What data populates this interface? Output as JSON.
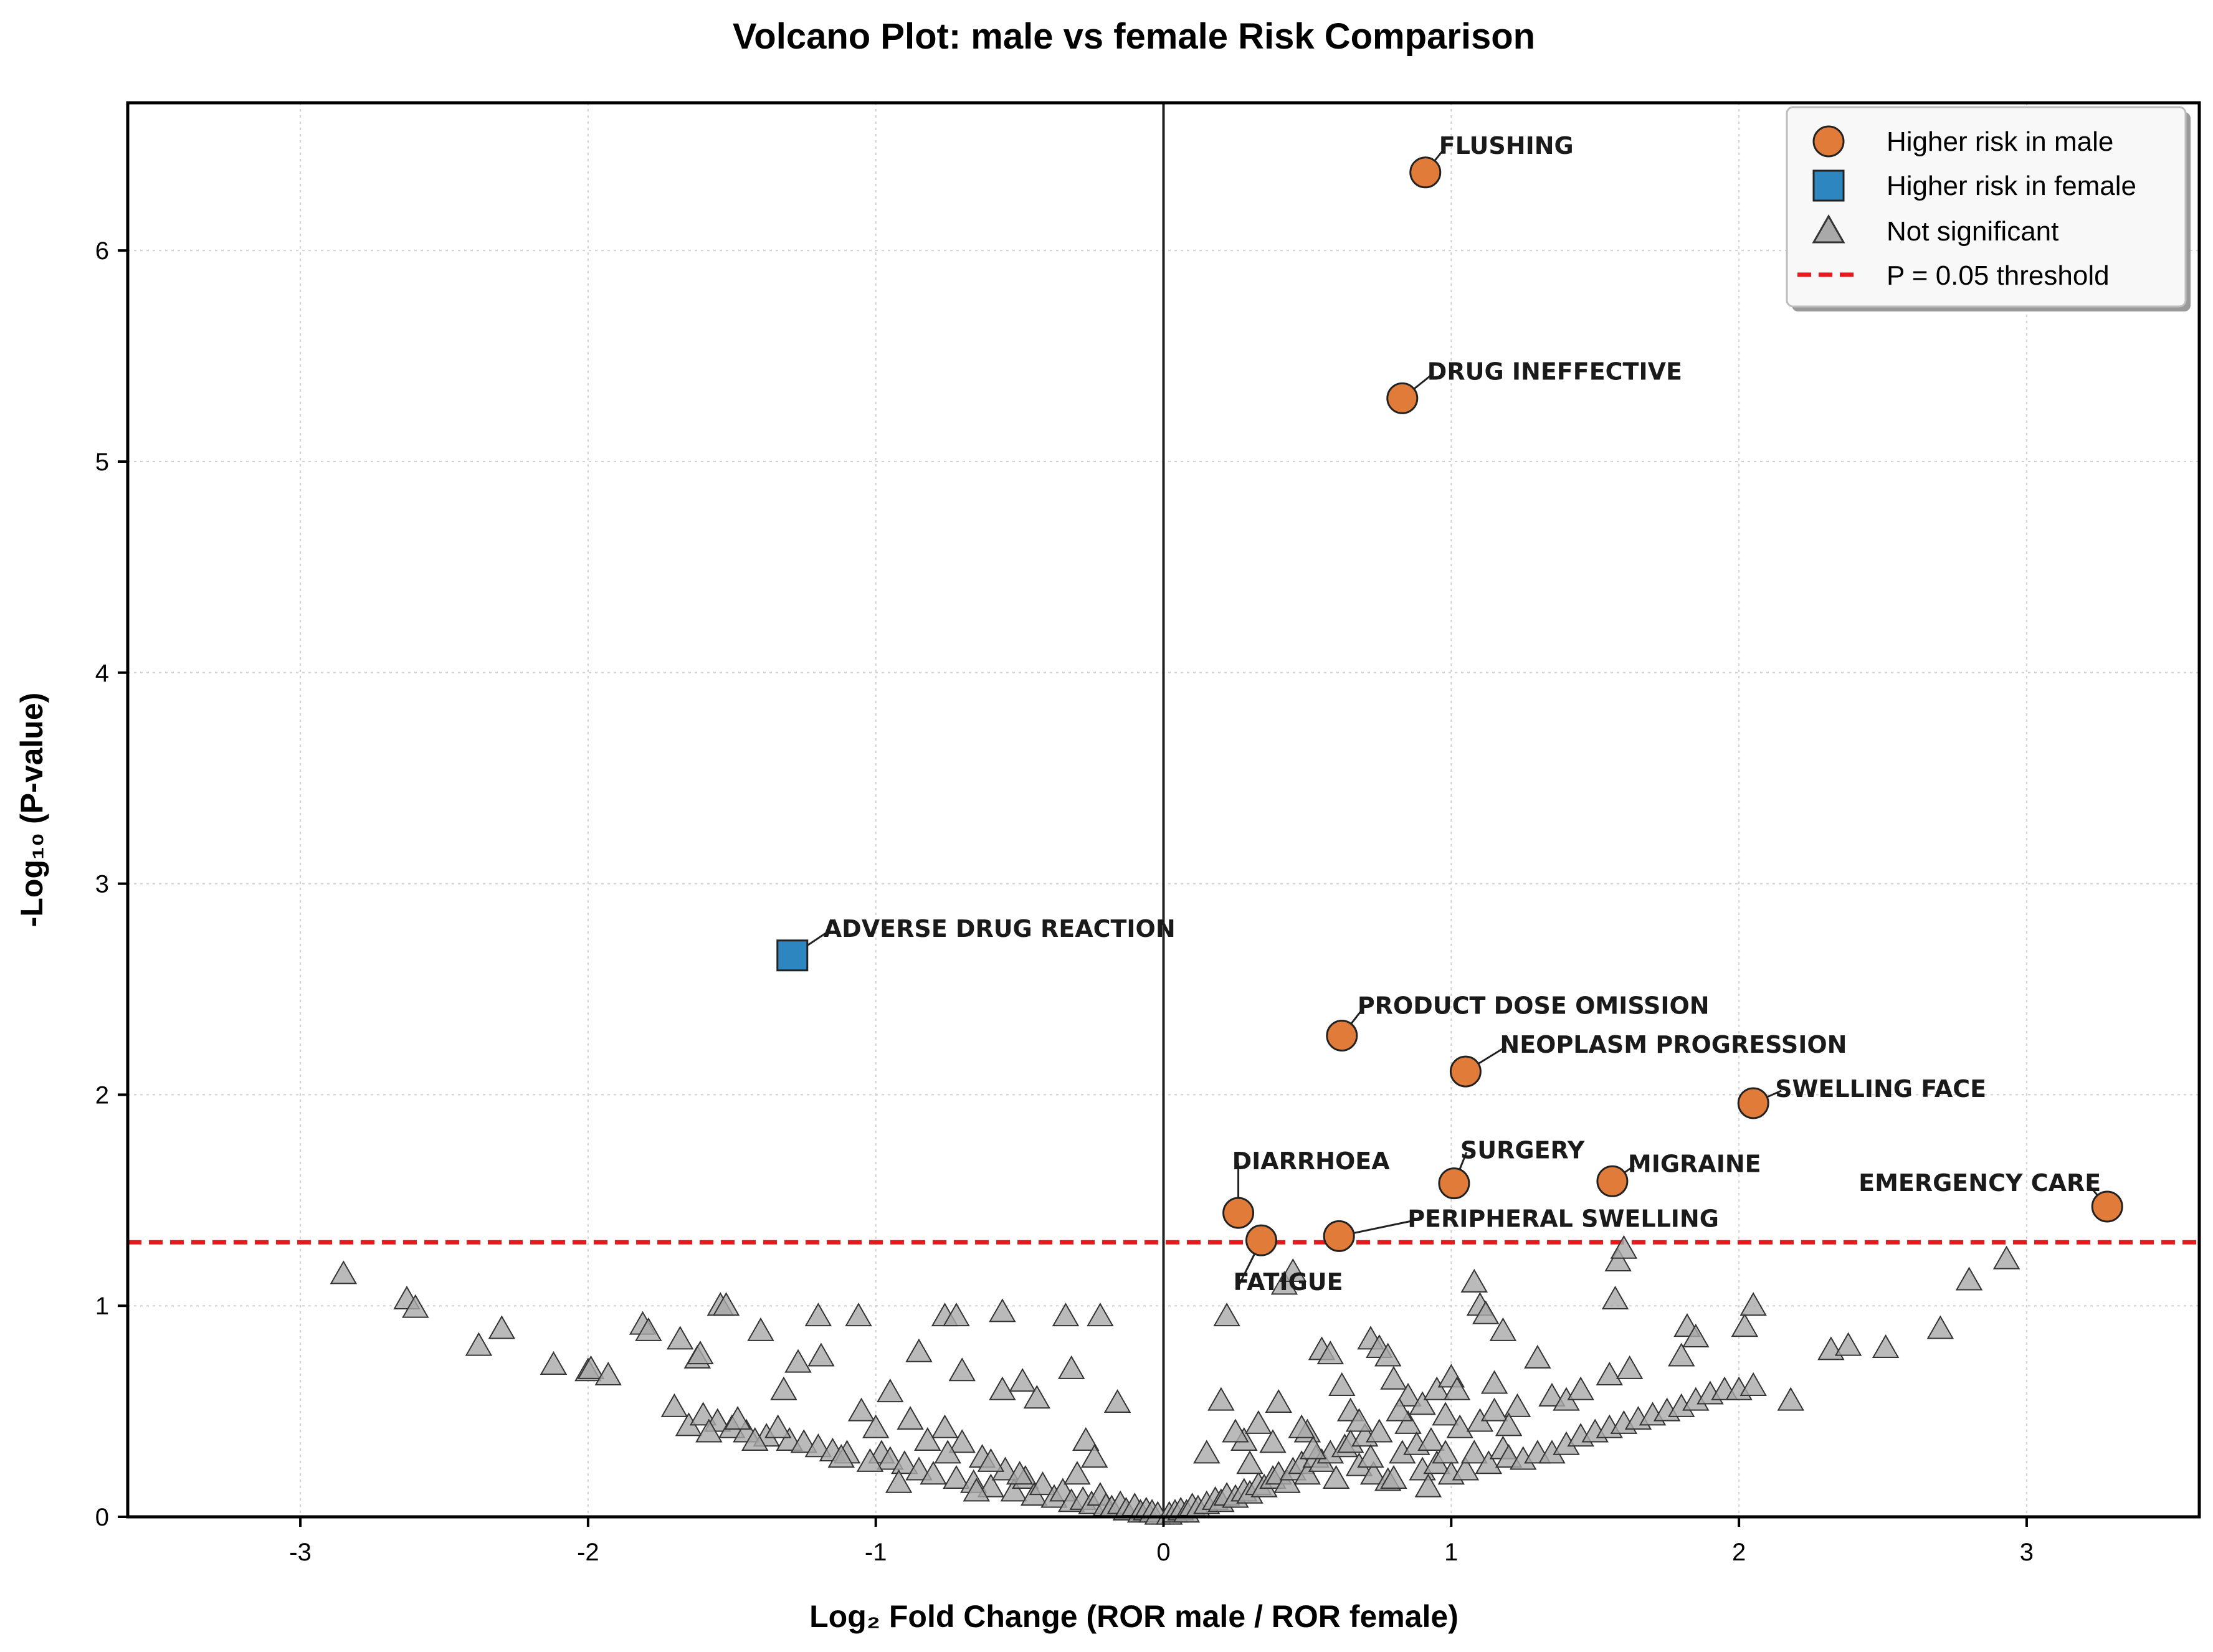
{
  "chart_data": {
    "type": "scatter",
    "title": "Volcano Plot: male vs female Risk Comparison",
    "xlabel": "Log₂ Fold Change (ROR male / ROR female)",
    "ylabel": "-Log₁₀ (P-value)",
    "xlim": [
      -3.6,
      3.6
    ],
    "ylim": [
      0,
      6.7
    ],
    "xticks": [
      -3,
      -2,
      -1,
      0,
      1,
      2,
      3
    ],
    "yticks": [
      0,
      1,
      2,
      3,
      4,
      5,
      6
    ],
    "threshold_y": 1.301,
    "grid": true,
    "legend_position": "top-right",
    "legend": [
      {
        "label": "Higher risk in male",
        "marker": "circle"
      },
      {
        "label": "Higher risk in female",
        "marker": "square"
      },
      {
        "label": "Not significant",
        "marker": "triangle"
      },
      {
        "label": "P = 0.05 threshold",
        "marker": "dashed-line"
      }
    ],
    "colors": {
      "male": "#E07B39",
      "female": "#2E86C1",
      "ns": "#A9A9A9",
      "threshold": "#E8191C"
    },
    "significant": [
      {
        "label": "FLUSHING",
        "x": 0.91,
        "y": 6.37,
        "group": "male"
      },
      {
        "label": "DRUG INEFFECTIVE",
        "x": 0.83,
        "y": 5.3,
        "group": "male"
      },
      {
        "label": "ADVERSE DRUG REACTION",
        "x": -1.29,
        "y": 2.66,
        "group": "female"
      },
      {
        "label": "PRODUCT DOSE OMISSION",
        "x": 0.62,
        "y": 2.28,
        "group": "male"
      },
      {
        "label": "NEOPLASM PROGRESSION",
        "x": 1.05,
        "y": 2.11,
        "group": "male"
      },
      {
        "label": "SWELLING FACE",
        "x": 2.05,
        "y": 1.96,
        "group": "male"
      },
      {
        "label": "SURGERY",
        "x": 1.01,
        "y": 1.58,
        "group": "male"
      },
      {
        "label": "MIGRAINE",
        "x": 1.56,
        "y": 1.59,
        "group": "male"
      },
      {
        "label": "EMERGENCY CARE",
        "x": 3.28,
        "y": 1.47,
        "group": "male"
      },
      {
        "label": "DIARRHOEA",
        "x": 0.26,
        "y": 1.44,
        "group": "male"
      },
      {
        "label": "PERIPHERAL SWELLING",
        "x": 0.61,
        "y": 1.33,
        "group": "male"
      },
      {
        "label": "FATIGUE",
        "x": 0.34,
        "y": 1.31,
        "group": "male"
      }
    ],
    "nonsignificant": [
      [
        -2.85,
        1.15
      ],
      [
        -2.63,
        1.03
      ],
      [
        -2.6,
        0.99
      ],
      [
        -2.38,
        0.81
      ],
      [
        -2.3,
        0.89
      ],
      [
        -2.12,
        0.72
      ],
      [
        -2.0,
        0.69
      ],
      [
        -1.99,
        0.7
      ],
      [
        -1.93,
        0.67
      ],
      [
        -1.81,
        0.91
      ],
      [
        -1.79,
        0.88
      ],
      [
        -1.68,
        0.84
      ],
      [
        -1.62,
        0.75
      ],
      [
        -1.61,
        0.77
      ],
      [
        -1.54,
        1.0
      ],
      [
        -1.52,
        1.0
      ],
      [
        -1.4,
        0.88
      ],
      [
        -1.32,
        0.6
      ],
      [
        -1.27,
        0.73
      ],
      [
        -1.2,
        0.95
      ],
      [
        -1.19,
        0.76
      ],
      [
        -1.06,
        0.95
      ],
      [
        -0.95,
        0.59
      ],
      [
        -0.85,
        0.78
      ],
      [
        -0.76,
        0.95
      ],
      [
        -0.72,
        0.95
      ],
      [
        -0.7,
        0.69
      ],
      [
        -0.56,
        0.97
      ],
      [
        -0.56,
        0.6
      ],
      [
        -0.49,
        0.64
      ],
      [
        -0.44,
        0.56
      ],
      [
        -0.34,
        0.95
      ],
      [
        -0.32,
        0.7
      ],
      [
        -0.22,
        0.95
      ],
      [
        -0.16,
        0.54
      ],
      [
        -1.7,
        0.52
      ],
      [
        -1.65,
        0.43
      ],
      [
        -1.6,
        0.48
      ],
      [
        -1.55,
        0.45
      ],
      [
        -1.5,
        0.42
      ],
      [
        -1.45,
        0.4
      ],
      [
        -1.38,
        0.38
      ],
      [
        -1.3,
        0.36
      ],
      [
        -1.25,
        0.35
      ],
      [
        -1.2,
        0.33
      ],
      [
        -1.15,
        0.31
      ],
      [
        -1.1,
        0.3
      ],
      [
        -1.05,
        0.5
      ],
      [
        -1.0,
        0.42
      ],
      [
        -0.98,
        0.3
      ],
      [
        -0.95,
        0.27
      ],
      [
        -0.9,
        0.25
      ],
      [
        -0.88,
        0.46
      ],
      [
        -0.85,
        0.22
      ],
      [
        -0.8,
        0.2
      ],
      [
        -0.76,
        0.42
      ],
      [
        -0.72,
        0.18
      ],
      [
        -0.7,
        0.35
      ],
      [
        -0.66,
        0.16
      ],
      [
        -0.63,
        0.28
      ],
      [
        -0.6,
        0.14
      ],
      [
        -0.55,
        0.22
      ],
      [
        -0.52,
        0.12
      ],
      [
        -0.48,
        0.18
      ],
      [
        -0.45,
        0.1
      ],
      [
        -0.42,
        0.15
      ],
      [
        -0.38,
        0.09
      ],
      [
        -0.35,
        0.12
      ],
      [
        -0.32,
        0.07
      ],
      [
        -0.3,
        0.2
      ],
      [
        -0.28,
        0.08
      ],
      [
        -0.25,
        0.06
      ],
      [
        -0.22,
        0.1
      ],
      [
        -0.2,
        0.05
      ],
      [
        -0.18,
        0.04
      ],
      [
        -0.15,
        0.06
      ],
      [
        -0.13,
        0.03
      ],
      [
        -0.1,
        0.05
      ],
      [
        -0.08,
        0.02
      ],
      [
        -0.06,
        0.03
      ],
      [
        -0.04,
        0.02
      ],
      [
        -0.02,
        0.01
      ],
      [
        -0.27,
        0.36
      ],
      [
        -0.24,
        0.28
      ],
      [
        -0.5,
        0.2
      ],
      [
        -0.6,
        0.26
      ],
      [
        -0.65,
        0.12
      ],
      [
        -0.75,
        0.3
      ],
      [
        -0.82,
        0.36
      ],
      [
        -0.92,
        0.16
      ],
      [
        -1.02,
        0.26
      ],
      [
        -1.12,
        0.28
      ],
      [
        -1.34,
        0.42
      ],
      [
        -1.42,
        0.36
      ],
      [
        -1.48,
        0.46
      ],
      [
        -1.58,
        0.4
      ],
      [
        0.02,
        0.01
      ],
      [
        0.04,
        0.02
      ],
      [
        0.06,
        0.03
      ],
      [
        0.08,
        0.02
      ],
      [
        0.1,
        0.05
      ],
      [
        0.12,
        0.04
      ],
      [
        0.15,
        0.06
      ],
      [
        0.18,
        0.08
      ],
      [
        0.2,
        0.07
      ],
      [
        0.22,
        0.1
      ],
      [
        0.25,
        0.09
      ],
      [
        0.28,
        0.12
      ],
      [
        0.3,
        0.11
      ],
      [
        0.33,
        0.15
      ],
      [
        0.35,
        0.14
      ],
      [
        0.38,
        0.18
      ],
      [
        0.4,
        0.2
      ],
      [
        0.43,
        0.16
      ],
      [
        0.45,
        0.22
      ],
      [
        0.48,
        0.25
      ],
      [
        0.5,
        0.2
      ],
      [
        0.53,
        0.28
      ],
      [
        0.55,
        0.26
      ],
      [
        0.58,
        0.3
      ],
      [
        0.6,
        0.18
      ],
      [
        0.63,
        0.33
      ],
      [
        0.65,
        0.35
      ],
      [
        0.68,
        0.24
      ],
      [
        0.7,
        0.38
      ],
      [
        0.73,
        0.2
      ],
      [
        0.75,
        0.4
      ],
      [
        0.78,
        0.17
      ],
      [
        0.8,
        0.18
      ],
      [
        0.83,
        0.3
      ],
      [
        0.85,
        0.44
      ],
      [
        0.88,
        0.34
      ],
      [
        0.9,
        0.22
      ],
      [
        0.93,
        0.36
      ],
      [
        0.95,
        0.25
      ],
      [
        0.98,
        0.48
      ],
      [
        1.0,
        0.2
      ],
      [
        1.03,
        0.42
      ],
      [
        1.05,
        0.22
      ],
      [
        1.08,
        0.3
      ],
      [
        1.1,
        0.45
      ],
      [
        1.13,
        0.25
      ],
      [
        1.15,
        0.5
      ],
      [
        1.18,
        0.32
      ],
      [
        1.2,
        0.28
      ],
      [
        1.23,
        0.52
      ],
      [
        1.25,
        0.27
      ],
      [
        1.3,
        0.3
      ],
      [
        1.35,
        0.3
      ],
      [
        1.4,
        0.34
      ],
      [
        1.45,
        0.38
      ],
      [
        1.5,
        0.4
      ],
      [
        1.55,
        0.42
      ],
      [
        1.6,
        0.44
      ],
      [
        1.65,
        0.46
      ],
      [
        1.7,
        0.48
      ],
      [
        1.75,
        0.5
      ],
      [
        1.8,
        0.52
      ],
      [
        1.85,
        0.55
      ],
      [
        1.9,
        0.58
      ],
      [
        1.95,
        0.6
      ],
      [
        2.0,
        0.6
      ],
      [
        2.05,
        0.62
      ],
      [
        2.18,
        0.55
      ],
      [
        0.22,
        0.95
      ],
      [
        0.2,
        0.55
      ],
      [
        0.28,
        0.36
      ],
      [
        0.33,
        0.44
      ],
      [
        0.38,
        0.35
      ],
      [
        0.4,
        0.54
      ],
      [
        0.42,
        1.1
      ],
      [
        0.45,
        1.16
      ],
      [
        0.5,
        0.4
      ],
      [
        0.55,
        0.79
      ],
      [
        0.58,
        0.77
      ],
      [
        0.62,
        0.62
      ],
      [
        0.65,
        0.5
      ],
      [
        0.72,
        0.84
      ],
      [
        0.75,
        0.8
      ],
      [
        0.78,
        0.76
      ],
      [
        0.8,
        0.65
      ],
      [
        0.85,
        0.57
      ],
      [
        0.9,
        0.53
      ],
      [
        0.95,
        0.6
      ],
      [
        1.0,
        0.66
      ],
      [
        1.02,
        0.6
      ],
      [
        1.08,
        1.11
      ],
      [
        1.1,
        1.0
      ],
      [
        1.12,
        0.96
      ],
      [
        1.15,
        0.63
      ],
      [
        1.18,
        0.88
      ],
      [
        1.2,
        0.43
      ],
      [
        1.3,
        0.75
      ],
      [
        1.35,
        0.57
      ],
      [
        1.4,
        0.55
      ],
      [
        1.45,
        0.6
      ],
      [
        1.55,
        0.67
      ],
      [
        1.58,
        1.21
      ],
      [
        1.6,
        1.27
      ],
      [
        1.57,
        1.03
      ],
      [
        1.62,
        0.7
      ],
      [
        1.8,
        0.76
      ],
      [
        1.82,
        0.9
      ],
      [
        1.85,
        0.85
      ],
      [
        2.02,
        0.9
      ],
      [
        2.05,
        1.0
      ],
      [
        2.32,
        0.79
      ],
      [
        2.38,
        0.81
      ],
      [
        2.51,
        0.8
      ],
      [
        2.7,
        0.89
      ],
      [
        2.8,
        1.12
      ],
      [
        2.93,
        1.22
      ],
      [
        0.15,
        0.3
      ],
      [
        0.25,
        0.4
      ],
      [
        0.3,
        0.25
      ],
      [
        0.48,
        0.42
      ],
      [
        0.52,
        0.32
      ],
      [
        0.68,
        0.45
      ],
      [
        0.72,
        0.28
      ],
      [
        0.82,
        0.5
      ],
      [
        0.92,
        0.14
      ],
      [
        0.98,
        0.3
      ]
    ]
  }
}
